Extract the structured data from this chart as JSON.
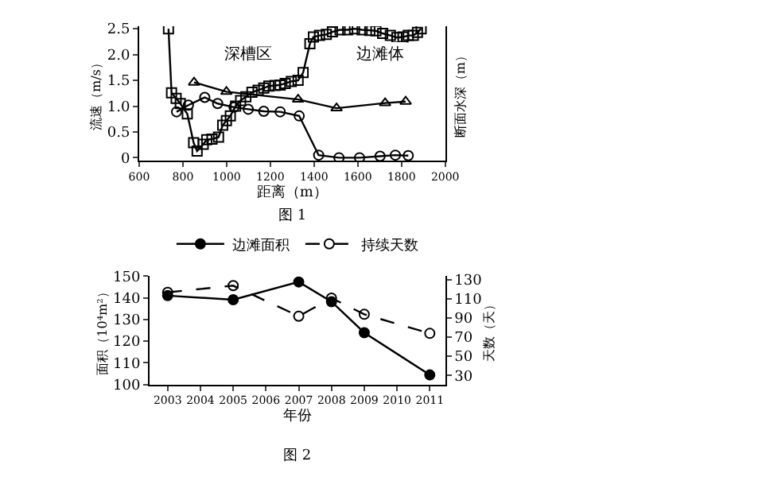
{
  "chart_data": [
    {
      "type": "line",
      "xlabel": "距离（m）",
      "ylabel": "流速（m/s）",
      "y2label": "断面水深（m）",
      "xlim": [
        600,
        2000
      ],
      "xticks": [
        600,
        800,
        1000,
        1200,
        1400,
        1600,
        1800,
        2000
      ],
      "ylim": [
        -0.06,
        2.55
      ],
      "yticks": [
        0,
        0.5,
        {
          "value": 1,
          "label": "1.0"
        },
        1.5,
        {
          "value": 2,
          "label": "2.0"
        },
        2.5
      ],
      "legend": false,
      "line_style": "solid",
      "annotations": [
        {
          "text": "深槽区",
          "x": 1100,
          "y": 2.0
        },
        {
          "text": "边滩体",
          "x": 1700,
          "y": 2.0
        },
        "图 1"
      ],
      "series": [
        {
          "color": "#000000",
          "marker": "square",
          "x": [
            734,
            748,
            769,
            788,
            820,
            849,
            865,
            893,
            909,
            933,
            963,
            982,
            999,
            1017,
            1041,
            1064,
            1088,
            1116,
            1144,
            1170,
            1193,
            1221,
            1245,
            1268,
            1296,
            1327,
            1350,
            1381,
            1397,
            1425,
            1456,
            1484,
            1519,
            1554,
            1585,
            1620,
            1655,
            1683,
            1714,
            1749,
            1779,
            1807,
            1831,
            1854,
            1873,
            1890
          ],
          "values": [
            2.5,
            1.26,
            1.15,
            1.05,
            0.85,
            0.29,
            0.13,
            0.26,
            0.35,
            0.36,
            0.4,
            0.63,
            0.72,
            0.81,
            1.0,
            1.11,
            1.18,
            1.27,
            1.31,
            1.35,
            1.39,
            1.4,
            1.41,
            1.44,
            1.48,
            1.5,
            1.65,
            2.21,
            2.34,
            2.37,
            2.39,
            2.44,
            2.48,
            2.48,
            2.5,
            2.48,
            2.47,
            2.46,
            2.41,
            2.37,
            2.33,
            2.34,
            2.37,
            2.37,
            2.43,
            2.5
          ]
        },
        {
          "color": "#000000",
          "marker": "circle",
          "x": [
            771,
            825,
            900,
            959,
            1034,
            1099,
            1170,
            1245,
            1332,
            1421,
            1514,
            1608,
            1702,
            1772,
            1831
          ],
          "values": [
            0.89,
            1.02,
            1.17,
            1.05,
            0.98,
            0.94,
            0.9,
            0.89,
            0.81,
            0.05,
            0.0,
            0.0,
            0.03,
            0.05,
            0.04
          ]
        },
        {
          "color": "#000000",
          "marker": "triangle",
          "x": [
            851,
            999,
            1327,
            1503,
            1725,
            1819
          ],
          "values": [
            1.46,
            1.28,
            1.13,
            0.96,
            1.06,
            1.09
          ]
        }
      ]
    },
    {
      "type": "line",
      "xlabel": "年份",
      "ylabel": "面积（10⁴m²）",
      "y2label": "天数（天）",
      "xlim": [
        2002.45,
        2011.47
      ],
      "xticks": [
        2003,
        2004,
        2005,
        2006,
        2007,
        2008,
        2009,
        2010,
        2011
      ],
      "ylim": [
        100,
        150
      ],
      "yticks": [
        100,
        110,
        120,
        130,
        140,
        150
      ],
      "y2lim": [
        20.5,
        134
      ],
      "y2ticks": [
        30,
        50,
        70,
        90,
        110,
        130
      ],
      "legend": "top",
      "marker": "circle",
      "annotations": [
        "图 2"
      ],
      "series": [
        {
          "name": "边滩面积",
          "color": "#000000",
          "line_style": "solid",
          "x": [
            2003,
            2005,
            2007,
            2008,
            2009,
            2011
          ],
          "values": [
            141.0,
            139.1,
            147.3,
            138.2,
            123.9,
            104.4
          ]
        },
        {
          "name": "持续天数",
          "color": "#000000",
          "line_style": "dashed",
          "axis": "y2",
          "x": [
            2003,
            2005,
            2007,
            2008,
            2009,
            2011
          ],
          "values": [
            117,
            124,
            92,
            111,
            94,
            74
          ]
        }
      ]
    }
  ]
}
